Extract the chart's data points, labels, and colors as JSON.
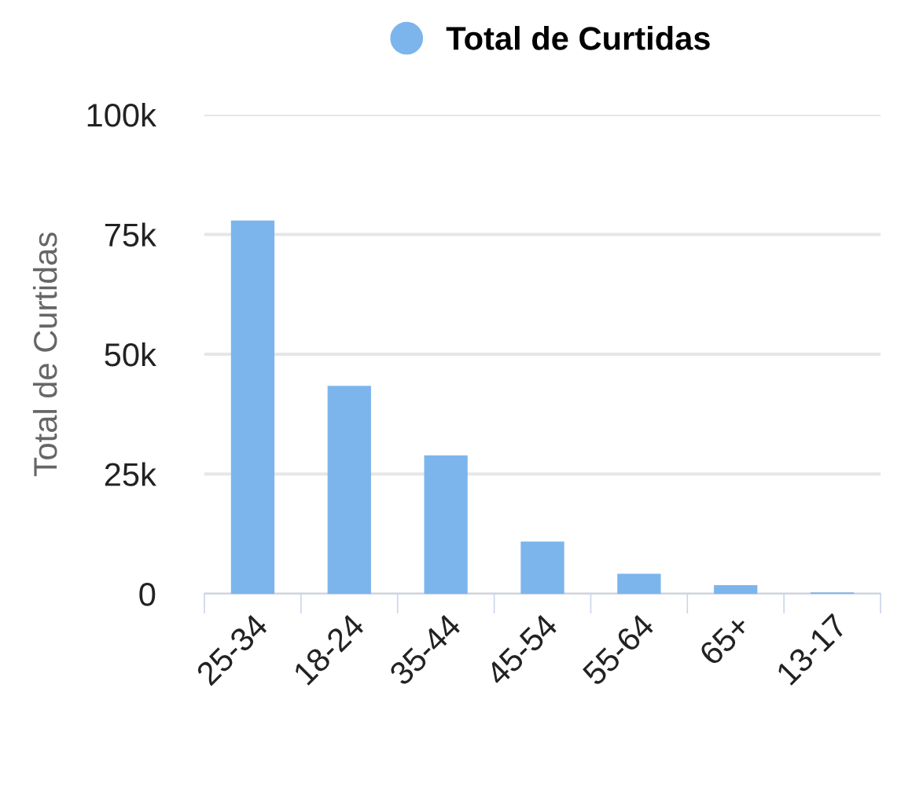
{
  "chart_data": {
    "type": "bar",
    "ylabel": "Total de Curtidas",
    "categories": [
      "25-34",
      "18-24",
      "35-44",
      "45-54",
      "55-64",
      "65+",
      "13-17"
    ],
    "series": [
      {
        "name": "Total de Curtidas",
        "color": "#7cb5ec",
        "values": [
          77900,
          43400,
          28900,
          10900,
          4200,
          1800,
          300
        ]
      }
    ],
    "ylim": [
      0,
      100000
    ],
    "yticks": [
      {
        "value": 0,
        "label": "0"
      },
      {
        "value": 25000,
        "label": "25k"
      },
      {
        "value": 50000,
        "label": "50k"
      },
      {
        "value": 75000,
        "label": "75k"
      },
      {
        "value": 100000,
        "label": "100k"
      }
    ],
    "grid": "y",
    "legend": "top"
  }
}
